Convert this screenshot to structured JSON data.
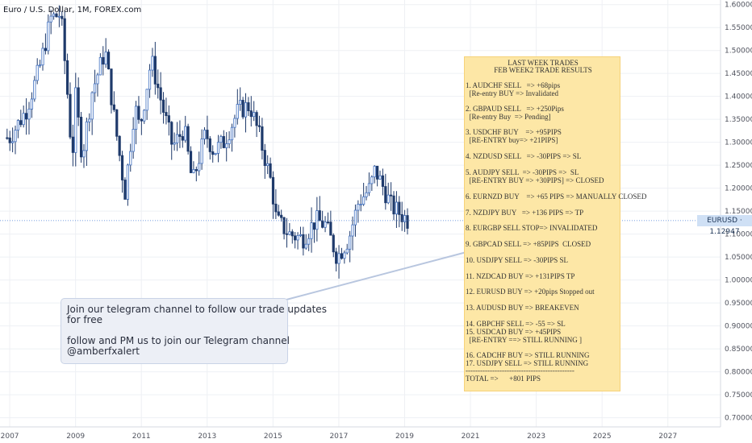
{
  "header": {
    "symbol_title": "Euro / U.S. Dollar, 1M, FOREX.com"
  },
  "price_label": {
    "text": "EURUSD · 1.12947"
  },
  "colors": {
    "candle_body": "#1f3a6b",
    "candle_outline": "#3f6fc0",
    "grid": "#eef0f4",
    "note_bg": "#fde7a6",
    "callout_bg": "#eceff6",
    "price_line": "#4a7fd6"
  },
  "note": {
    "title_lines": [
      "LAST WEEK TRADES",
      "FEB WEEK2 TRADE RESULTS"
    ],
    "lines": [
      "1. AUDCHF SELL   => +68pips",
      "  [Re-entry BUY => Invalidated",
      "2. GBPAUD SELL   => +250Pips",
      "  [Re-entry Buy  => Pending]",
      "3. USDCHF BUY    => +95PIPS",
      "  [RE-ENTRY buy=> +21PIPS]",
      "4. NZDUSD SELL   => -30PIPS => SL",
      "5. AUDJPY SELL  => -30PIPS =>  SL",
      "  [RE-ENTRY BUY => +30PIPS] => CLOSED",
      "6. EURNZD BUY    => +65 PIPS => MANUALLY CLOSED",
      "7. NZDJPY BUY   => +136 PIPS => TP",
      "8. EURGBP SELL STOP=> INVALIDATED",
      "9. GBPCAD SELL => +85PIPS  CLOSED",
      "10. USDJPY SELL => -30PIPS SL",
      "11. NZDCAD BUY => +131PIPS TP",
      "12. EURUSD BUY => +20pips Stopped out",
      "13. AUDUSD BUY => BREAKEVEN",
      "14. GBPCHF SELL => -55 => SL",
      "15. USDCAD BUY => +45PIPS",
      "  [RE-ENTRY ==> STILL RUNNING ]",
      "16. CADCHF BUY => STILL RUNNING",
      "17. USDJPY SELL => STILL RUNNING",
      "---------------------------------------------",
      "TOTAL =>      +801 PIPS"
    ]
  },
  "callout": {
    "lines": [
      "Join our telegram channel to follow our trade updates",
      "for free",
      "follow and PM us to join our Telegram channel",
      "@amberfxalert"
    ]
  },
  "chart_data": {
    "type": "candlestick",
    "symbol": "EURUSD",
    "timeframe": "1M",
    "last_price": 1.12947,
    "x_ticks": [
      "2007",
      "2009",
      "2011",
      "2013",
      "2015",
      "2017",
      "2019",
      "2021",
      "2023",
      "2025",
      "2027"
    ],
    "y_ticks": [
      0.7,
      0.75,
      0.8,
      0.85,
      0.9,
      0.95,
      1.0,
      1.05,
      1.1,
      1.15,
      1.2,
      1.25,
      1.3,
      1.35,
      1.4,
      1.45,
      1.5,
      1.55,
      1.6
    ],
    "ylim": [
      0.68,
      1.61
    ],
    "xlim": [
      2006.9,
      2028.6
    ],
    "grid": true,
    "anchor_closes": [
      [
        2007.0,
        1.31
      ],
      [
        2007.5,
        1.37
      ],
      [
        2007.9,
        1.46
      ],
      [
        2008.25,
        1.57
      ],
      [
        2008.55,
        1.58
      ],
      [
        2008.75,
        1.41
      ],
      [
        2008.9,
        1.26
      ],
      [
        2009.0,
        1.4
      ],
      [
        2009.2,
        1.27
      ],
      [
        2009.5,
        1.41
      ],
      [
        2009.9,
        1.5
      ],
      [
        2010.2,
        1.34
      ],
      [
        2010.5,
        1.19
      ],
      [
        2010.8,
        1.38
      ],
      [
        2010.95,
        1.33
      ],
      [
        2011.3,
        1.48
      ],
      [
        2011.7,
        1.36
      ],
      [
        2011.95,
        1.29
      ],
      [
        2012.3,
        1.33
      ],
      [
        2012.55,
        1.21
      ],
      [
        2012.95,
        1.32
      ],
      [
        2013.2,
        1.28
      ],
      [
        2013.5,
        1.3
      ],
      [
        2013.95,
        1.37
      ],
      [
        2014.3,
        1.38
      ],
      [
        2014.6,
        1.31
      ],
      [
        2014.95,
        1.21
      ],
      [
        2015.1,
        1.13
      ],
      [
        2015.5,
        1.1
      ],
      [
        2015.9,
        1.09
      ],
      [
        2016.3,
        1.13
      ],
      [
        2016.6,
        1.12
      ],
      [
        2016.95,
        1.05
      ],
      [
        2017.3,
        1.09
      ],
      [
        2017.6,
        1.17
      ],
      [
        2017.95,
        1.2
      ],
      [
        2018.1,
        1.24
      ],
      [
        2018.3,
        1.21
      ],
      [
        2018.6,
        1.16
      ],
      [
        2018.95,
        1.14
      ],
      [
        2019.1,
        1.13
      ]
    ]
  }
}
